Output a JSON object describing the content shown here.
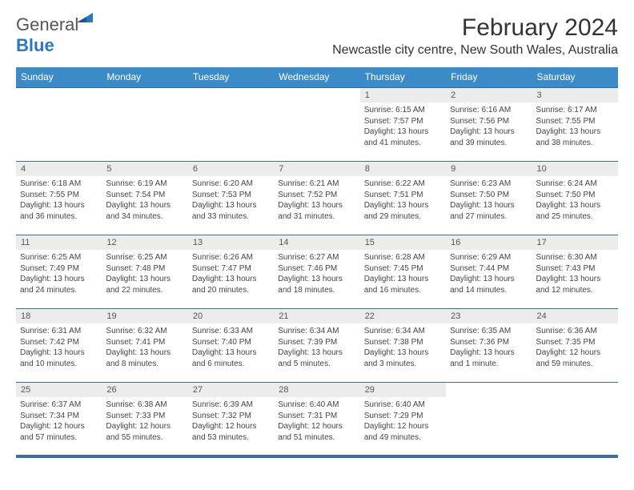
{
  "logo": {
    "text_general": "General",
    "text_blue": "Blue"
  },
  "title": "February 2024",
  "location": "Newcastle city centre, New South Wales, Australia",
  "colors": {
    "header_bg": "#3b8bc9",
    "header_text": "#ffffff",
    "daynum_bg": "#ececec",
    "cell_border": "#3b6f9e",
    "body_text": "#444444",
    "page_bg": "#ffffff"
  },
  "typography": {
    "title_fontsize": 30,
    "location_fontsize": 16,
    "dayheader_fontsize": 12,
    "daynum_fontsize": 11,
    "body_fontsize": 10
  },
  "weekdays": [
    "Sunday",
    "Monday",
    "Tuesday",
    "Wednesday",
    "Thursday",
    "Friday",
    "Saturday"
  ],
  "weeks": [
    [
      null,
      null,
      null,
      null,
      {
        "n": "1",
        "sr": "Sunrise: 6:15 AM",
        "ss": "Sunset: 7:57 PM",
        "d1": "Daylight: 13 hours",
        "d2": "and 41 minutes."
      },
      {
        "n": "2",
        "sr": "Sunrise: 6:16 AM",
        "ss": "Sunset: 7:56 PM",
        "d1": "Daylight: 13 hours",
        "d2": "and 39 minutes."
      },
      {
        "n": "3",
        "sr": "Sunrise: 6:17 AM",
        "ss": "Sunset: 7:55 PM",
        "d1": "Daylight: 13 hours",
        "d2": "and 38 minutes."
      }
    ],
    [
      {
        "n": "4",
        "sr": "Sunrise: 6:18 AM",
        "ss": "Sunset: 7:55 PM",
        "d1": "Daylight: 13 hours",
        "d2": "and 36 minutes."
      },
      {
        "n": "5",
        "sr": "Sunrise: 6:19 AM",
        "ss": "Sunset: 7:54 PM",
        "d1": "Daylight: 13 hours",
        "d2": "and 34 minutes."
      },
      {
        "n": "6",
        "sr": "Sunrise: 6:20 AM",
        "ss": "Sunset: 7:53 PM",
        "d1": "Daylight: 13 hours",
        "d2": "and 33 minutes."
      },
      {
        "n": "7",
        "sr": "Sunrise: 6:21 AM",
        "ss": "Sunset: 7:52 PM",
        "d1": "Daylight: 13 hours",
        "d2": "and 31 minutes."
      },
      {
        "n": "8",
        "sr": "Sunrise: 6:22 AM",
        "ss": "Sunset: 7:51 PM",
        "d1": "Daylight: 13 hours",
        "d2": "and 29 minutes."
      },
      {
        "n": "9",
        "sr": "Sunrise: 6:23 AM",
        "ss": "Sunset: 7:50 PM",
        "d1": "Daylight: 13 hours",
        "d2": "and 27 minutes."
      },
      {
        "n": "10",
        "sr": "Sunrise: 6:24 AM",
        "ss": "Sunset: 7:50 PM",
        "d1": "Daylight: 13 hours",
        "d2": "and 25 minutes."
      }
    ],
    [
      {
        "n": "11",
        "sr": "Sunrise: 6:25 AM",
        "ss": "Sunset: 7:49 PM",
        "d1": "Daylight: 13 hours",
        "d2": "and 24 minutes."
      },
      {
        "n": "12",
        "sr": "Sunrise: 6:25 AM",
        "ss": "Sunset: 7:48 PM",
        "d1": "Daylight: 13 hours",
        "d2": "and 22 minutes."
      },
      {
        "n": "13",
        "sr": "Sunrise: 6:26 AM",
        "ss": "Sunset: 7:47 PM",
        "d1": "Daylight: 13 hours",
        "d2": "and 20 minutes."
      },
      {
        "n": "14",
        "sr": "Sunrise: 6:27 AM",
        "ss": "Sunset: 7:46 PM",
        "d1": "Daylight: 13 hours",
        "d2": "and 18 minutes."
      },
      {
        "n": "15",
        "sr": "Sunrise: 6:28 AM",
        "ss": "Sunset: 7:45 PM",
        "d1": "Daylight: 13 hours",
        "d2": "and 16 minutes."
      },
      {
        "n": "16",
        "sr": "Sunrise: 6:29 AM",
        "ss": "Sunset: 7:44 PM",
        "d1": "Daylight: 13 hours",
        "d2": "and 14 minutes."
      },
      {
        "n": "17",
        "sr": "Sunrise: 6:30 AM",
        "ss": "Sunset: 7:43 PM",
        "d1": "Daylight: 13 hours",
        "d2": "and 12 minutes."
      }
    ],
    [
      {
        "n": "18",
        "sr": "Sunrise: 6:31 AM",
        "ss": "Sunset: 7:42 PM",
        "d1": "Daylight: 13 hours",
        "d2": "and 10 minutes."
      },
      {
        "n": "19",
        "sr": "Sunrise: 6:32 AM",
        "ss": "Sunset: 7:41 PM",
        "d1": "Daylight: 13 hours",
        "d2": "and 8 minutes."
      },
      {
        "n": "20",
        "sr": "Sunrise: 6:33 AM",
        "ss": "Sunset: 7:40 PM",
        "d1": "Daylight: 13 hours",
        "d2": "and 6 minutes."
      },
      {
        "n": "21",
        "sr": "Sunrise: 6:34 AM",
        "ss": "Sunset: 7:39 PM",
        "d1": "Daylight: 13 hours",
        "d2": "and 5 minutes."
      },
      {
        "n": "22",
        "sr": "Sunrise: 6:34 AM",
        "ss": "Sunset: 7:38 PM",
        "d1": "Daylight: 13 hours",
        "d2": "and 3 minutes."
      },
      {
        "n": "23",
        "sr": "Sunrise: 6:35 AM",
        "ss": "Sunset: 7:36 PM",
        "d1": "Daylight: 13 hours",
        "d2": "and 1 minute."
      },
      {
        "n": "24",
        "sr": "Sunrise: 6:36 AM",
        "ss": "Sunset: 7:35 PM",
        "d1": "Daylight: 12 hours",
        "d2": "and 59 minutes."
      }
    ],
    [
      {
        "n": "25",
        "sr": "Sunrise: 6:37 AM",
        "ss": "Sunset: 7:34 PM",
        "d1": "Daylight: 12 hours",
        "d2": "and 57 minutes."
      },
      {
        "n": "26",
        "sr": "Sunrise: 6:38 AM",
        "ss": "Sunset: 7:33 PM",
        "d1": "Daylight: 12 hours",
        "d2": "and 55 minutes."
      },
      {
        "n": "27",
        "sr": "Sunrise: 6:39 AM",
        "ss": "Sunset: 7:32 PM",
        "d1": "Daylight: 12 hours",
        "d2": "and 53 minutes."
      },
      {
        "n": "28",
        "sr": "Sunrise: 6:40 AM",
        "ss": "Sunset: 7:31 PM",
        "d1": "Daylight: 12 hours",
        "d2": "and 51 minutes."
      },
      {
        "n": "29",
        "sr": "Sunrise: 6:40 AM",
        "ss": "Sunset: 7:29 PM",
        "d1": "Daylight: 12 hours",
        "d2": "and 49 minutes."
      },
      null,
      null
    ]
  ]
}
